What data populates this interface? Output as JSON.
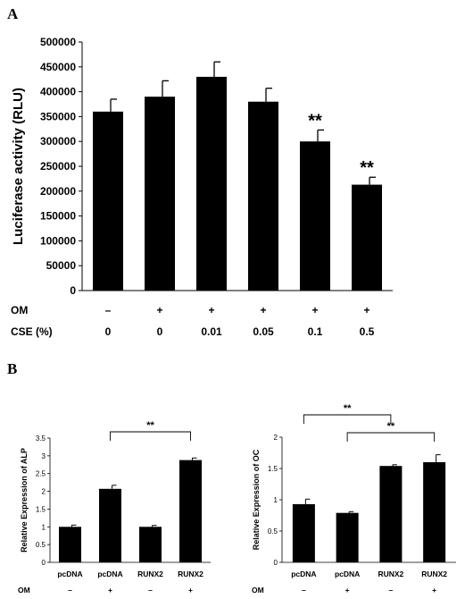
{
  "panels": {
    "a": "A",
    "b": "B"
  },
  "chart_data": [
    {
      "type": "bar",
      "ylabel": "Luciferase activity (RLU)",
      "ylim": [
        0,
        500000
      ],
      "yticks": [
        0,
        50000,
        100000,
        150000,
        200000,
        250000,
        300000,
        350000,
        400000,
        450000,
        500000
      ],
      "values": [
        360000,
        390000,
        430000,
        380000,
        300000,
        213000
      ],
      "errors": [
        25000,
        32000,
        30000,
        27000,
        23000,
        15000
      ],
      "annotations": [
        "",
        "",
        "",
        "",
        "**",
        "**"
      ],
      "conditions": [
        {
          "label": "OM",
          "values": [
            "–",
            "+",
            "+",
            "+",
            "+",
            "+"
          ]
        },
        {
          "label": "CSE (%)",
          "values": [
            "0",
            "0",
            "0.01",
            "0.05",
            "0.1",
            "0.5"
          ]
        }
      ],
      "color": "#000000"
    },
    {
      "type": "bar",
      "ylabel": "Relative Expression of ALP",
      "ylim": [
        0,
        3.5
      ],
      "yticks": [
        "0",
        "0.5",
        "1",
        "1.5",
        "2",
        "2.5",
        "3",
        "3.5"
      ],
      "categories": [
        "pcDNA",
        "pcDNA",
        "RUNX2",
        "RUNX2"
      ],
      "values": [
        1.0,
        2.07,
        1.0,
        2.88
      ],
      "errors": [
        0.05,
        0.1,
        0.04,
        0.06
      ],
      "om_label": "OM",
      "om": [
        "–",
        "+",
        "–",
        "+"
      ],
      "brackets": [
        {
          "from": 1,
          "to": 3,
          "label": "**"
        }
      ],
      "color": "#000000"
    },
    {
      "type": "bar",
      "ylabel": "Relative Expression of OC",
      "ylim": [
        0,
        2
      ],
      "yticks": [
        "0",
        "0.5",
        "1",
        "1.5",
        "2"
      ],
      "categories": [
        "pcDNA",
        "pcDNA",
        "RUNX2",
        "RUNX2"
      ],
      "values": [
        0.93,
        0.79,
        1.54,
        1.6
      ],
      "errors": [
        0.08,
        0.02,
        0.02,
        0.12
      ],
      "om_label": "OM",
      "om": [
        "–",
        "+",
        "–",
        "+"
      ],
      "brackets": [
        {
          "from": 0,
          "to": 2,
          "label": "**"
        },
        {
          "from": 1,
          "to": 3,
          "label": "**"
        }
      ],
      "color": "#000000"
    }
  ]
}
